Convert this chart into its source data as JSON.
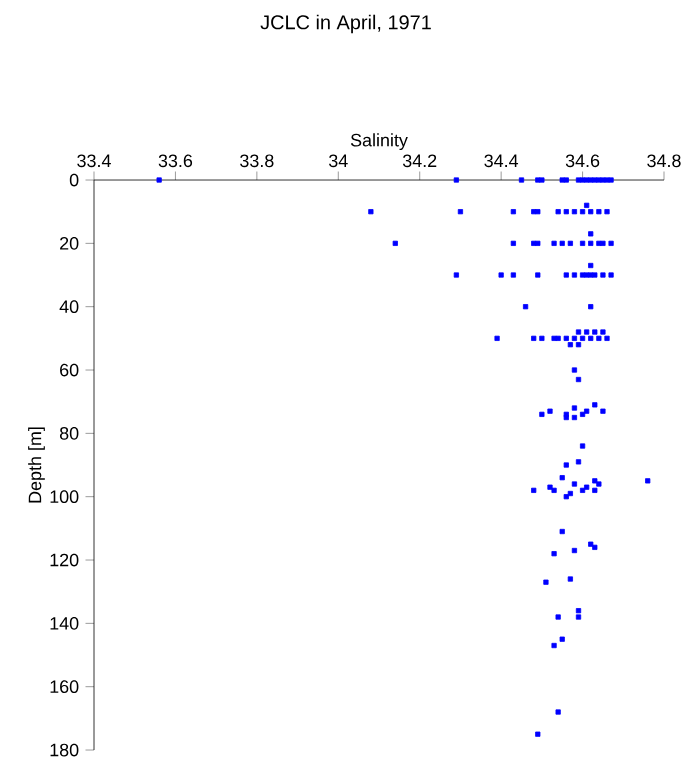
{
  "chart_data": {
    "type": "scatter",
    "title": "JCLC in April, 1971",
    "xlabel": "Salinity",
    "ylabel": "Depth [m]",
    "xlim": [
      33.4,
      34.8
    ],
    "xticks": [
      33.4,
      33.6,
      33.8,
      34,
      34.2,
      34.4,
      34.6,
      34.8
    ],
    "ylim": [
      180,
      0
    ],
    "yticks": [
      0,
      20,
      40,
      60,
      80,
      100,
      120,
      140,
      160,
      180
    ],
    "marker": "square",
    "grid": false,
    "series": [
      {
        "color": "#0000ff",
        "x": [
          33.56,
          34.29,
          34.45,
          34.49,
          34.5,
          34.55,
          34.56,
          34.59,
          34.6,
          34.61,
          34.62,
          34.63,
          34.64,
          34.65,
          34.66,
          34.67,
          34.08,
          34.3,
          34.43,
          34.48,
          34.49,
          34.54,
          34.56,
          34.58,
          34.6,
          34.62,
          34.64,
          34.66,
          34.61,
          34.14,
          34.43,
          34.48,
          34.49,
          34.53,
          34.55,
          34.57,
          34.6,
          34.62,
          34.64,
          34.65,
          34.67,
          34.62,
          34.29,
          34.4,
          34.43,
          34.49,
          34.56,
          34.58,
          34.6,
          34.61,
          34.62,
          34.63,
          34.65,
          34.67,
          34.62,
          34.46,
          34.62,
          34.39,
          34.48,
          34.5,
          34.53,
          34.54,
          34.56,
          34.58,
          34.6,
          34.62,
          34.64,
          34.66,
          34.59,
          34.61,
          34.63,
          34.65,
          34.57,
          34.59,
          34.58,
          34.59,
          34.63,
          34.5,
          34.52,
          34.56,
          34.56,
          34.58,
          34.58,
          34.6,
          34.61,
          34.65,
          34.6,
          34.59,
          34.56,
          34.55,
          34.48,
          34.52,
          34.53,
          34.58,
          34.57,
          34.56,
          34.6,
          34.61,
          34.63,
          34.63,
          34.64,
          34.76,
          34.55,
          34.62,
          34.63,
          34.58,
          34.53,
          34.51,
          34.57,
          34.59,
          34.59,
          34.54,
          34.55,
          34.53,
          34.54,
          34.49
        ],
        "values": [
          0,
          0,
          0,
          0,
          0,
          0,
          0,
          0,
          0,
          0,
          0,
          0,
          0,
          0,
          0,
          0,
          10,
          10,
          10,
          10,
          10,
          10,
          10,
          10,
          10,
          10,
          10,
          10,
          8,
          20,
          20,
          20,
          20,
          20,
          20,
          20,
          20,
          20,
          20,
          20,
          20,
          17,
          30,
          30,
          30,
          30,
          30,
          30,
          30,
          30,
          30,
          30,
          30,
          30,
          27,
          40,
          40,
          50,
          50,
          50,
          50,
          50,
          50,
          50,
          50,
          50,
          50,
          50,
          48,
          48,
          48,
          48,
          52,
          52,
          60,
          63,
          71,
          74,
          73,
          74,
          75,
          72,
          75,
          74,
          73,
          73,
          84,
          89,
          90,
          94,
          98,
          97,
          98,
          96,
          99,
          100,
          98,
          97,
          95,
          98,
          96,
          95,
          111,
          115,
          116,
          117,
          118,
          127,
          126,
          136,
          138,
          138,
          145,
          147,
          168,
          175
        ]
      }
    ]
  }
}
